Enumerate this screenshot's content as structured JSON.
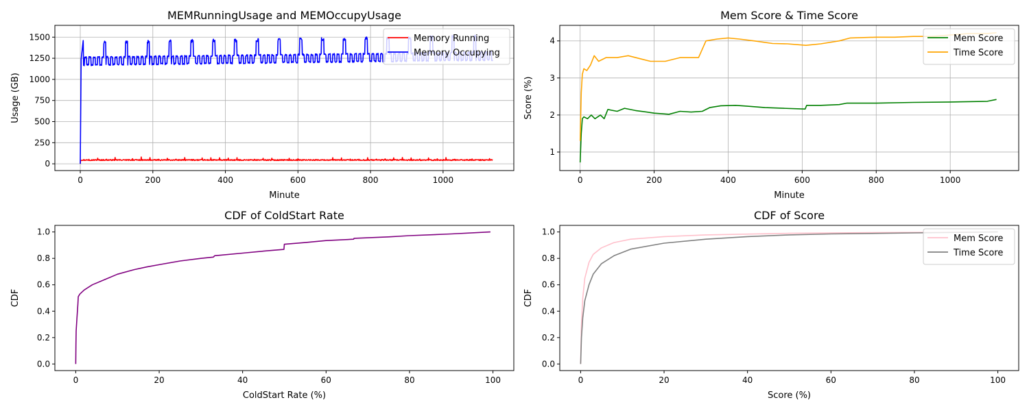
{
  "chart_data": [
    {
      "type": "line",
      "title": "MEMRunningUsage and MEMOccupyUsage",
      "xlabel": "Minute",
      "ylabel": "Usage (GB)",
      "xlim": [
        -70,
        1195
      ],
      "ylim": [
        -80,
        1640
      ],
      "xticks": [
        0,
        200,
        400,
        600,
        800,
        1000
      ],
      "yticks": [
        0,
        250,
        500,
        750,
        1000,
        1250,
        1500
      ],
      "grid": true,
      "legend": "upper right",
      "series": [
        {
          "name": "Memory Running",
          "color": "#ff0000",
          "pattern": {
            "kind": "noisy",
            "x_end": 1137,
            "start": 0,
            "start_dur": 1,
            "base": 45,
            "jitter": 12,
            "spike_every": 24,
            "spike": 30
          }
        },
        {
          "name": "Memory Occupying",
          "color": "#0000ff",
          "pattern": {
            "kind": "periodic",
            "x_end": 1137,
            "start": 0,
            "rise_to": 1460,
            "rise_dur": 8,
            "base_lo": 1170,
            "base_hi": 1260,
            "osc_period": 12,
            "peak_every": 60,
            "peak_first": 65,
            "peak_height": 1430,
            "drift": 0.09
          }
        }
      ]
    },
    {
      "type": "line",
      "title": "Mem Score & Time Score",
      "xlabel": "Minute",
      "ylabel": "Score (%)",
      "xlim": [
        -55,
        1185
      ],
      "ylim": [
        0.5,
        4.42
      ],
      "xticks": [
        0,
        200,
        400,
        600,
        800,
        1000
      ],
      "yticks": [
        1,
        2,
        3,
        4
      ],
      "grid": true,
      "legend": "upper right",
      "series": [
        {
          "name": "Mem Score",
          "color": "#008000",
          "points": [
            [
              0,
              0.72
            ],
            [
              3,
              1.5
            ],
            [
              6,
              1.9
            ],
            [
              10,
              1.95
            ],
            [
              20,
              1.9
            ],
            [
              30,
              2.0
            ],
            [
              40,
              1.9
            ],
            [
              55,
              2.0
            ],
            [
              65,
              1.9
            ],
            [
              75,
              2.15
            ],
            [
              100,
              2.1
            ],
            [
              120,
              2.18
            ],
            [
              150,
              2.12
            ],
            [
              180,
              2.08
            ],
            [
              200,
              2.05
            ],
            [
              240,
              2.02
            ],
            [
              270,
              2.1
            ],
            [
              300,
              2.08
            ],
            [
              330,
              2.1
            ],
            [
              350,
              2.2
            ],
            [
              380,
              2.25
            ],
            [
              420,
              2.26
            ],
            [
              450,
              2.24
            ],
            [
              500,
              2.2
            ],
            [
              550,
              2.18
            ],
            [
              608,
              2.16
            ],
            [
              612,
              2.26
            ],
            [
              650,
              2.26
            ],
            [
              700,
              2.28
            ],
            [
              720,
              2.32
            ],
            [
              800,
              2.32
            ],
            [
              900,
              2.34
            ],
            [
              1000,
              2.35
            ],
            [
              1100,
              2.37
            ],
            [
              1125,
              2.42
            ]
          ]
        },
        {
          "name": "Time Score",
          "color": "#ffa500",
          "points": [
            [
              0,
              1.3
            ],
            [
              3,
              2.6
            ],
            [
              6,
              3.1
            ],
            [
              10,
              3.25
            ],
            [
              18,
              3.2
            ],
            [
              28,
              3.35
            ],
            [
              38,
              3.6
            ],
            [
              50,
              3.45
            ],
            [
              70,
              3.55
            ],
            [
              100,
              3.55
            ],
            [
              130,
              3.6
            ],
            [
              170,
              3.5
            ],
            [
              190,
              3.45
            ],
            [
              230,
              3.45
            ],
            [
              270,
              3.55
            ],
            [
              310,
              3.55
            ],
            [
              320,
              3.55
            ],
            [
              340,
              4.0
            ],
            [
              370,
              4.05
            ],
            [
              400,
              4.08
            ],
            [
              430,
              4.05
            ],
            [
              470,
              4.0
            ],
            [
              520,
              3.93
            ],
            [
              560,
              3.92
            ],
            [
              610,
              3.88
            ],
            [
              650,
              3.92
            ],
            [
              700,
              4.0
            ],
            [
              730,
              4.08
            ],
            [
              800,
              4.1
            ],
            [
              850,
              4.1
            ],
            [
              900,
              4.12
            ],
            [
              950,
              4.12
            ],
            [
              1000,
              4.16
            ],
            [
              1050,
              4.2
            ],
            [
              1100,
              4.2
            ],
            [
              1125,
              4.22
            ]
          ]
        }
      ]
    },
    {
      "type": "line",
      "title": "CDF of ColdStart Rate",
      "xlabel": "ColdStart Rate (%)",
      "ylabel": "CDF",
      "xlim": [
        -5,
        105
      ],
      "ylim": [
        -0.05,
        1.05
      ],
      "xticks": [
        0,
        20,
        40,
        60,
        80,
        100
      ],
      "yticks": [
        0.0,
        0.2,
        0.4,
        0.6,
        0.8,
        1.0
      ],
      "grid": false,
      "series": [
        {
          "name": "",
          "color": "#800080",
          "points": [
            [
              0,
              0.0
            ],
            [
              0.05,
              0.15
            ],
            [
              0.1,
              0.25
            ],
            [
              0.3,
              0.35
            ],
            [
              0.5,
              0.45
            ],
            [
              0.6,
              0.51
            ],
            [
              1,
              0.53
            ],
            [
              2,
              0.56
            ],
            [
              4,
              0.6
            ],
            [
              7,
              0.64
            ],
            [
              10,
              0.68
            ],
            [
              14,
              0.715
            ],
            [
              17,
              0.735
            ],
            [
              20,
              0.752
            ],
            [
              25,
              0.78
            ],
            [
              30,
              0.8
            ],
            [
              33,
              0.81
            ],
            [
              33.3,
              0.82
            ],
            [
              40,
              0.84
            ],
            [
              45,
              0.855
            ],
            [
              49.9,
              0.868
            ],
            [
              50,
              0.907
            ],
            [
              55,
              0.92
            ],
            [
              60,
              0.935
            ],
            [
              66.6,
              0.945
            ],
            [
              66.7,
              0.952
            ],
            [
              75,
              0.963
            ],
            [
              80,
              0.972
            ],
            [
              90,
              0.985
            ],
            [
              99.4,
              1.0
            ]
          ]
        }
      ]
    },
    {
      "type": "line",
      "title": "CDF of Score",
      "xlabel": "Score (%)",
      "ylabel": "CDF",
      "xlim": [
        -5,
        105
      ],
      "ylim": [
        -0.05,
        1.05
      ],
      "xticks": [
        0,
        20,
        40,
        60,
        80,
        100
      ],
      "yticks": [
        0.0,
        0.2,
        0.4,
        0.6,
        0.8,
        1.0
      ],
      "grid": false,
      "legend": "upper right",
      "series": [
        {
          "name": "Mem Score",
          "color": "#ffc0cb",
          "points": [
            [
              0,
              0.0
            ],
            [
              0.2,
              0.3
            ],
            [
              0.5,
              0.5
            ],
            [
              1,
              0.65
            ],
            [
              2,
              0.77
            ],
            [
              3,
              0.83
            ],
            [
              5,
              0.88
            ],
            [
              8,
              0.92
            ],
            [
              12,
              0.945
            ],
            [
              20,
              0.965
            ],
            [
              30,
              0.978
            ],
            [
              50,
              0.99
            ],
            [
              70,
              0.995
            ],
            [
              100,
              1.0
            ]
          ]
        },
        {
          "name": "Time Score",
          "color": "#808080",
          "points": [
            [
              0,
              0.0
            ],
            [
              0.2,
              0.2
            ],
            [
              0.5,
              0.35
            ],
            [
              1,
              0.48
            ],
            [
              2,
              0.6
            ],
            [
              3,
              0.68
            ],
            [
              5,
              0.76
            ],
            [
              8,
              0.82
            ],
            [
              12,
              0.87
            ],
            [
              20,
              0.915
            ],
            [
              30,
              0.945
            ],
            [
              40,
              0.965
            ],
            [
              50,
              0.978
            ],
            [
              60,
              0.985
            ],
            [
              80,
              0.993
            ],
            [
              100,
              1.0
            ]
          ]
        }
      ]
    }
  ]
}
